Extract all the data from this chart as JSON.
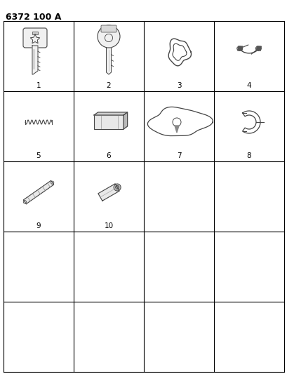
{
  "title": "6372 100 A",
  "background_color": "#ffffff",
  "grid_color": "#000000",
  "text_color": "#000000",
  "rows": 5,
  "cols": 4,
  "items": [
    {
      "num": "1",
      "row": 0,
      "col": 0,
      "type": "key_dodge"
    },
    {
      "num": "2",
      "row": 0,
      "col": 1,
      "type": "key_plain"
    },
    {
      "num": "3",
      "row": 0,
      "col": 2,
      "type": "ring_oval"
    },
    {
      "num": "4",
      "row": 0,
      "col": 3,
      "type": "spring_clip"
    },
    {
      "num": "5",
      "row": 1,
      "col": 0,
      "type": "spring_coil"
    },
    {
      "num": "6",
      "row": 1,
      "col": 1,
      "type": "key_blank_rect"
    },
    {
      "num": "7",
      "row": 1,
      "col": 2,
      "type": "lock_plate"
    },
    {
      "num": "8",
      "row": 1,
      "col": 3,
      "type": "c_clip"
    },
    {
      "num": "9",
      "row": 2,
      "col": 0,
      "type": "roll_pin_long"
    },
    {
      "num": "10",
      "row": 2,
      "col": 1,
      "type": "roll_pin_short"
    }
  ]
}
